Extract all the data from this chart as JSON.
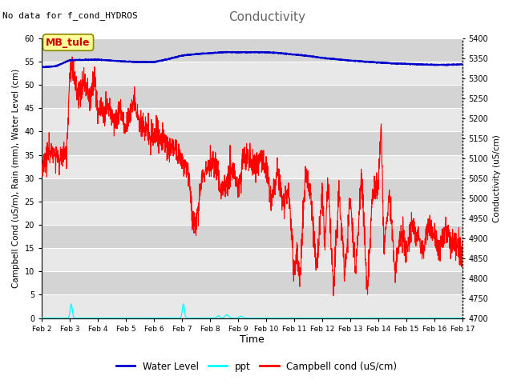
{
  "title": "Conductivity",
  "top_left_text": "No data for f_cond_HYDROS",
  "xlabel": "Time",
  "ylabel_left": "Campbell Cond (uS/m), Rain (mm), Water Level (cm)",
  "ylabel_right": "Conductivity (uS/cm)",
  "ylim_left": [
    0,
    60
  ],
  "ylim_right": [
    4700,
    5400
  ],
  "yticks_left": [
    0,
    5,
    10,
    15,
    20,
    25,
    30,
    35,
    40,
    45,
    50,
    55,
    60
  ],
  "yticks_right": [
    4700,
    4750,
    4800,
    4850,
    4900,
    4950,
    5000,
    5050,
    5100,
    5150,
    5200,
    5250,
    5300,
    5350,
    5400
  ],
  "bg_color": "#ffffff",
  "plot_bg_color": "#e8e8e8",
  "band_light": "#ebebeb",
  "band_dark": "#d8d8d8",
  "grid_color": "white",
  "annotation_box": "MB_tule",
  "annotation_box_color": "#ffff99",
  "annotation_box_edgecolor": "#888800",
  "annotation_text_color": "#cc0000",
  "legend_entries": [
    "Water Level",
    "ppt",
    "Campbell cond (uS/cm)"
  ],
  "water_level_color": "#0000cc",
  "ppt_color": "cyan",
  "campbell_color": "red",
  "xtick_labels": [
    "Feb 2",
    "Feb 3",
    "Feb 4",
    "Feb 5",
    "Feb 6",
    "Feb 7",
    "Feb 8",
    "Feb 9",
    "Feb 10",
    "Feb 11",
    "Feb 12",
    "Feb 13",
    "Feb 14",
    "Feb 15",
    "Feb 16",
    "Feb 17"
  ],
  "xtick_positions": [
    2,
    3,
    4,
    5,
    6,
    7,
    8,
    9,
    10,
    11,
    12,
    13,
    14,
    15,
    16,
    17
  ]
}
